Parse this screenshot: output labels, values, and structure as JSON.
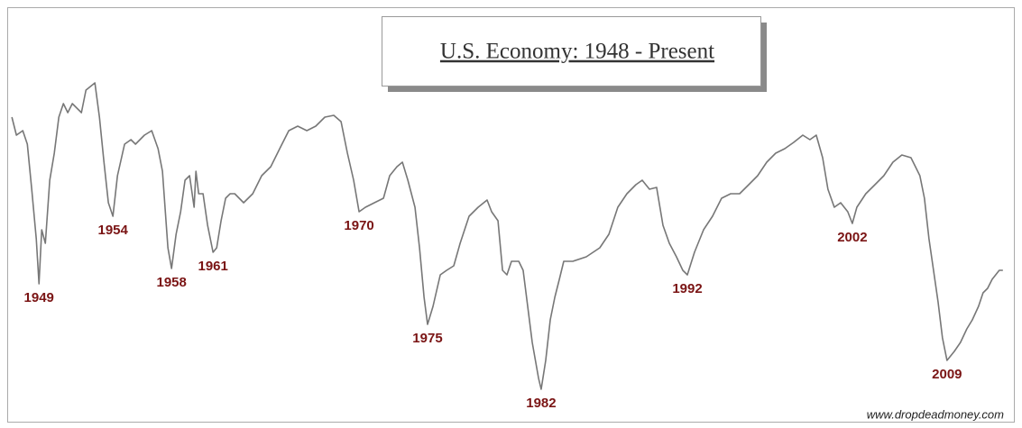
{
  "chart_data": {
    "type": "line",
    "title": "U.S. Economy: 1948 - Present",
    "watermark": "www.dropdeadmoney.com",
    "color": "#777777",
    "xlim": [
      1948,
      2013.5
    ],
    "ylim": [
      0,
      100
    ],
    "x": [
      1948.01,
      1948.31,
      1948.73,
      1949.03,
      1949.32,
      1949.62,
      1949.8,
      1949.98,
      1950.22,
      1950.51,
      1950.81,
      1951.11,
      1951.41,
      1951.7,
      1952.0,
      1952.6,
      1952.9,
      1953.49,
      1953.79,
      1954.09,
      1954.38,
      1954.68,
      1954.98,
      1955.45,
      1955.87,
      1956.17,
      1956.76,
      1957.24,
      1957.66,
      1957.95,
      1958.31,
      1958.55,
      1958.85,
      1959.15,
      1959.44,
      1959.74,
      1960.04,
      1960.16,
      1960.34,
      1960.63,
      1960.93,
      1961.29,
      1961.53,
      1961.82,
      1962.12,
      1962.42,
      1962.72,
      1963.31,
      1963.91,
      1964.5,
      1965.1,
      1965.69,
      1966.29,
      1966.88,
      1967.48,
      1968.07,
      1968.67,
      1969.26,
      1969.74,
      1970.16,
      1970.57,
      1970.93,
      1971.35,
      1971.94,
      1972.54,
      1972.95,
      1973.43,
      1973.79,
      1974.15,
      1974.62,
      1974.92,
      1975.22,
      1975.45,
      1975.81,
      1976.29,
      1976.71,
      1977.18,
      1977.6,
      1978.19,
      1978.79,
      1979.38,
      1979.68,
      1980.1,
      1980.4,
      1980.69,
      1980.99,
      1981.47,
      1981.76,
      1982.06,
      1982.36,
      1982.78,
      1982.95,
      1983.25,
      1983.55,
      1983.85,
      1984.15,
      1984.44,
      1985.04,
      1985.93,
      1986.82,
      1987.42,
      1988.01,
      1988.61,
      1989.2,
      1989.62,
      1990.1,
      1990.57,
      1990.99,
      1991.41,
      1991.88,
      1992.3,
      1992.6,
      1993.07,
      1993.67,
      1994.26,
      1994.86,
      1995.46,
      1996.05,
      1996.65,
      1997.24,
      1997.84,
      1998.43,
      1999.03,
      1999.62,
      2000.22,
      2000.69,
      2001.11,
      2001.53,
      2001.88,
      2002.3,
      2002.72,
      2003.19,
      2003.49,
      2003.79,
      2004.38,
      2004.98,
      2005.57,
      2006.17,
      2006.76,
      2007.36,
      2007.95,
      2008.25,
      2008.55,
      2009.15,
      2009.44,
      2009.74,
      2010.22,
      2010.63,
      2011.05,
      2011.41,
      2011.82,
      2012.12,
      2012.42,
      2012.72,
      2013.19,
      2013.43
    ],
    "series": [
      {
        "name": "U.S. Economy",
        "color": "#777777",
        "values": [
          85,
          80,
          81.25,
          77.5,
          65,
          51.25,
          38.75,
          53.75,
          50,
          67.5,
          75,
          85,
          88.75,
          86.25,
          88.75,
          86.25,
          92.5,
          94.5,
          85,
          72.5,
          61.25,
          57.5,
          68.75,
          77.5,
          78.75,
          77.5,
          80,
          81.25,
          76.25,
          70,
          48.75,
          43,
          52.5,
          58.75,
          67.5,
          68.75,
          60,
          70,
          63.75,
          63.75,
          55,
          47.5,
          48.75,
          56.25,
          62.5,
          63.75,
          63.75,
          61.25,
          63.75,
          68.75,
          71.25,
          76.25,
          81.25,
          82.5,
          81.25,
          82.5,
          85,
          85.5,
          83.75,
          75,
          67.5,
          58.75,
          60,
          61.25,
          62.5,
          68.75,
          71.25,
          72.5,
          67.5,
          60,
          48.75,
          35,
          27.5,
          32.5,
          41.25,
          42.5,
          43.75,
          50,
          57.5,
          60,
          62,
          58.75,
          56.25,
          42.5,
          41.25,
          45,
          45,
          42.5,
          32.5,
          22.5,
          12.5,
          9.5,
          17.5,
          28.75,
          35,
          40,
          45,
          45,
          46.25,
          48.75,
          52.5,
          60,
          63.75,
          66.25,
          67.5,
          65,
          65.5,
          55,
          50,
          46.25,
          42.5,
          41.25,
          47.5,
          53.75,
          57.5,
          62.5,
          63.75,
          63.75,
          66.25,
          68.75,
          72.5,
          75,
          76.25,
          78,
          80,
          78.75,
          80,
          73.75,
          65,
          60,
          61.25,
          58.75,
          55.5,
          60,
          63.75,
          66.25,
          68.75,
          72.5,
          74.5,
          73.75,
          68.75,
          62.5,
          51.25,
          33.75,
          23.75,
          17.5,
          20,
          22.5,
          26.25,
          28.75,
          32.5,
          36.25,
          37.5,
          40,
          42.5,
          42.5
        ]
      }
    ],
    "annotations": [
      {
        "text": "1949",
        "x": 1949.8,
        "y": 38.75
      },
      {
        "text": "1954",
        "x": 1954.68,
        "y": 57.5
      },
      {
        "text": "1958",
        "x": 1958.55,
        "y": 43
      },
      {
        "text": "1961",
        "x": 1961.29,
        "y": 47.5
      },
      {
        "text": "1970",
        "x": 1970.93,
        "y": 58.75
      },
      {
        "text": "1975",
        "x": 1975.45,
        "y": 27.5
      },
      {
        "text": "1982",
        "x": 1982.95,
        "y": 9.5
      },
      {
        "text": "1992",
        "x": 1992.6,
        "y": 41.25
      },
      {
        "text": "2002",
        "x": 2003.49,
        "y": 55.5
      },
      {
        "text": "2009",
        "x": 2009.74,
        "y": 17.5
      }
    ]
  }
}
